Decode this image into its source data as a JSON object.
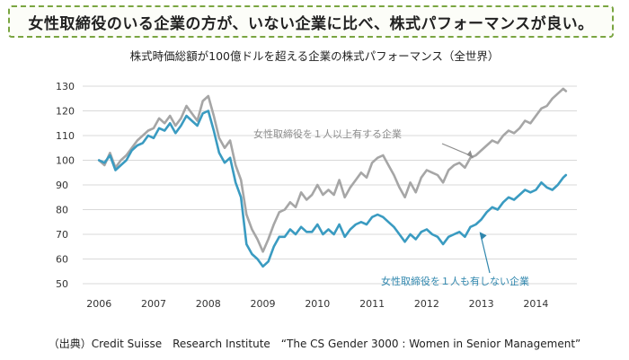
{
  "headline": "女性取締役のいる企業の方が、いない企業に比べ、株式パフォーマンスが良い。",
  "source": "（出典）Credit Suisse　Research Institute　“The CS Gender 3000 : Women in Senior Management”",
  "colors": {
    "with_women": "#a6a6a6",
    "without_women": "#3a9bc1",
    "grid": "#d9d9d9"
  },
  "chart_data": {
    "type": "line",
    "title": "株式時価総額が100億ドルを超える企業の株式パフォーマンス（全世界）",
    "xlabel": "",
    "ylabel": "",
    "xlim": [
      2005.7,
      2014.75
    ],
    "ylim": [
      50,
      130
    ],
    "x_ticks": [
      "2006",
      "2007",
      "2008",
      "2009",
      "2010",
      "2011",
      "2012",
      "2013",
      "2014"
    ],
    "y_ticks": [
      50,
      60,
      70,
      80,
      90,
      100,
      110,
      120,
      130
    ],
    "grid": true,
    "series": [
      {
        "name": "女性取締役を１人以上有する企業",
        "color": "#a6a6a6",
        "x": [
          2006.0,
          2006.1,
          2006.2,
          2006.3,
          2006.4,
          2006.5,
          2006.6,
          2006.7,
          2006.8,
          2006.9,
          2007.0,
          2007.1,
          2007.2,
          2007.3,
          2007.4,
          2007.5,
          2007.6,
          2007.7,
          2007.8,
          2007.9,
          2008.0,
          2008.1,
          2008.2,
          2008.3,
          2008.4,
          2008.5,
          2008.6,
          2008.7,
          2008.8,
          2008.9,
          2009.0,
          2009.1,
          2009.2,
          2009.3,
          2009.4,
          2009.5,
          2009.6,
          2009.7,
          2009.8,
          2009.9,
          2010.0,
          2010.1,
          2010.2,
          2010.3,
          2010.4,
          2010.5,
          2010.6,
          2010.7,
          2010.8,
          2010.9,
          2011.0,
          2011.1,
          2011.2,
          2011.3,
          2011.4,
          2011.5,
          2011.6,
          2011.7,
          2011.8,
          2011.9,
          2012.0,
          2012.1,
          2012.2,
          2012.3,
          2012.4,
          2012.5,
          2012.6,
          2012.7,
          2012.8,
          2012.9,
          2013.0,
          2013.1,
          2013.2,
          2013.3,
          2013.4,
          2013.5,
          2013.6,
          2013.7,
          2013.8,
          2013.9,
          2014.0,
          2014.1,
          2014.2,
          2014.3,
          2014.4,
          2014.5,
          2014.55
        ],
        "values": [
          100,
          98,
          103,
          97,
          100,
          102,
          105,
          108,
          110,
          112,
          113,
          117,
          115,
          118,
          114,
          117,
          122,
          119,
          116,
          124,
          126,
          118,
          109,
          105,
          108,
          98,
          92,
          78,
          72,
          68,
          63,
          68,
          74,
          79,
          80,
          83,
          81,
          87,
          84,
          86,
          90,
          86,
          88,
          86,
          92,
          85,
          89,
          92,
          95,
          93,
          99,
          101,
          102,
          98,
          94,
          89,
          85,
          91,
          87,
          93,
          96,
          95,
          94,
          91,
          96,
          98,
          99,
          97,
          101,
          102,
          104,
          106,
          108,
          107,
          110,
          112,
          111,
          113,
          116,
          115,
          118,
          121,
          122,
          125,
          127,
          129,
          128
        ]
      },
      {
        "name": "女性取締役を１人も有しない企業",
        "color": "#3a9bc1",
        "x": [
          2006.0,
          2006.1,
          2006.2,
          2006.3,
          2006.4,
          2006.5,
          2006.6,
          2006.7,
          2006.8,
          2006.9,
          2007.0,
          2007.1,
          2007.2,
          2007.3,
          2007.4,
          2007.5,
          2007.6,
          2007.7,
          2007.8,
          2007.9,
          2008.0,
          2008.1,
          2008.2,
          2008.3,
          2008.4,
          2008.5,
          2008.6,
          2008.7,
          2008.8,
          2008.9,
          2009.0,
          2009.1,
          2009.2,
          2009.3,
          2009.4,
          2009.5,
          2009.6,
          2009.7,
          2009.8,
          2009.9,
          2010.0,
          2010.1,
          2010.2,
          2010.3,
          2010.4,
          2010.5,
          2010.6,
          2010.7,
          2010.8,
          2010.9,
          2011.0,
          2011.1,
          2011.2,
          2011.3,
          2011.4,
          2011.5,
          2011.6,
          2011.7,
          2011.8,
          2011.9,
          2012.0,
          2012.1,
          2012.2,
          2012.3,
          2012.4,
          2012.5,
          2012.6,
          2012.7,
          2012.8,
          2012.9,
          2013.0,
          2013.1,
          2013.2,
          2013.3,
          2013.4,
          2013.5,
          2013.6,
          2013.7,
          2013.8,
          2013.9,
          2014.0,
          2014.1,
          2014.2,
          2014.3,
          2014.4,
          2014.5,
          2014.55
        ],
        "values": [
          100,
          99,
          102,
          96,
          98,
          100,
          104,
          106,
          107,
          110,
          109,
          113,
          112,
          115,
          111,
          114,
          118,
          116,
          114,
          119,
          120,
          112,
          103,
          99,
          101,
          91,
          85,
          66,
          62,
          60,
          57,
          59,
          65,
          69,
          69,
          72,
          70,
          73,
          71,
          71,
          74,
          70,
          72,
          70,
          74,
          69,
          72,
          74,
          75,
          74,
          77,
          78,
          77,
          75,
          73,
          70,
          67,
          70,
          68,
          71,
          72,
          70,
          69,
          66,
          69,
          70,
          71,
          69,
          73,
          74,
          76,
          79,
          81,
          80,
          83,
          85,
          84,
          86,
          88,
          87,
          88,
          91,
          89,
          88,
          90,
          93,
          94
        ]
      }
    ]
  }
}
